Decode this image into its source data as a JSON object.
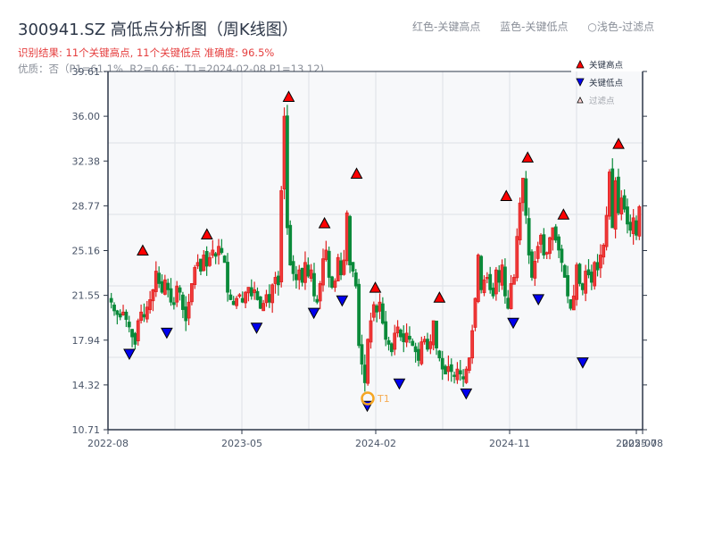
{
  "header": {
    "title": "300941.SZ 高低点分析图（周K线图）",
    "result_line": "识别结果: 11个关键高点, 11个关键低点   准确度: 96.5%",
    "quality_line": "优质：否（P1=61.1%, R2=0.66；T1=2024-02-08 P1=13.12)"
  },
  "top_legend": {
    "red": "红色-关键高点",
    "blue": "蓝色-关键低点",
    "light": "○浅色-过滤点"
  },
  "colors": {
    "up": "#e02020",
    "down": "#0a8a3a",
    "high_marker": "#ff0000",
    "low_marker": "#0000ee",
    "t1_ring": "#f5a623",
    "axis": "#2d3748",
    "grid": "#e2e5ea",
    "plot_bg": "#f7f8fa"
  },
  "chart_data": {
    "type": "candlestick",
    "title": "300941.SZ 高低点分析图（周K线图）",
    "xlabel": "",
    "ylabel": "",
    "ylim": [
      10.71,
      39.61
    ],
    "yticks": [
      "39.61",
      "36.00",
      "32.38",
      "28.77",
      "25.16",
      "21.55",
      "17.94",
      "14.32",
      "10.71"
    ],
    "xticks": [
      "2022-08",
      "2023-05",
      "2024-02",
      "2024-11",
      "2025-07",
      "2025-08"
    ],
    "grid": true,
    "legend": {
      "position": "upper right",
      "entries": [
        "关键高点",
        "关键低点",
        "过滤点"
      ]
    },
    "key_highs": [
      {
        "x_frac": 0.065,
        "value": 24.8
      },
      {
        "x_frac": 0.185,
        "value": 26.1
      },
      {
        "x_frac": 0.338,
        "value": 37.2
      },
      {
        "x_frac": 0.405,
        "value": 27.0
      },
      {
        "x_frac": 0.465,
        "value": 31.0
      },
      {
        "x_frac": 0.5,
        "value": 21.8
      },
      {
        "x_frac": 0.62,
        "value": 21.0
      },
      {
        "x_frac": 0.745,
        "value": 29.2
      },
      {
        "x_frac": 0.785,
        "value": 32.3
      },
      {
        "x_frac": 0.852,
        "value": 27.7
      },
      {
        "x_frac": 0.955,
        "value": 33.4
      }
    ],
    "key_lows": [
      {
        "x_frac": 0.04,
        "value": 17.2
      },
      {
        "x_frac": 0.11,
        "value": 18.9
      },
      {
        "x_frac": 0.278,
        "value": 19.3
      },
      {
        "x_frac": 0.385,
        "value": 20.5
      },
      {
        "x_frac": 0.438,
        "value": 21.5
      },
      {
        "x_frac": 0.485,
        "value": 13.0
      },
      {
        "x_frac": 0.545,
        "value": 14.8
      },
      {
        "x_frac": 0.67,
        "value": 14.0
      },
      {
        "x_frac": 0.758,
        "value": 19.7
      },
      {
        "x_frac": 0.805,
        "value": 21.6
      },
      {
        "x_frac": 0.888,
        "value": 16.5
      }
    ],
    "t1": {
      "label": "T1",
      "date": "2024-02-08",
      "value": 13.12
    },
    "candles_note": "Weekly OHLC series from 2022-08 to 2025-08 (approx. 156 weeks), values estimated from the figure",
    "closes": [
      21.0,
      20.3,
      20.0,
      19.8,
      20.2,
      19.6,
      19.0,
      18.2,
      17.6,
      19.5,
      20.2,
      19.8,
      20.6,
      21.2,
      22.0,
      23.5,
      22.5,
      21.8,
      22.8,
      22.0,
      21.0,
      20.8,
      22.3,
      21.8,
      20.4,
      19.5,
      21.0,
      22.5,
      23.8,
      24.2,
      23.5,
      24.8,
      23.9,
      24.6,
      25.2,
      24.7,
      25.5,
      25.0,
      24.2,
      21.8,
      21.2,
      20.8,
      21.3,
      21.6,
      21.0,
      21.8,
      22.2,
      21.5,
      22.0,
      21.2,
      20.5,
      20.9,
      21.6,
      21.0,
      22.4,
      23.0,
      22.4,
      30.0,
      36.0,
      27.0,
      24.0,
      23.3,
      22.8,
      23.6,
      22.6,
      24.2,
      23.1,
      23.6,
      21.5,
      21.0,
      22.5,
      24.5,
      25.2,
      23.0,
      22.2,
      22.7,
      24.6,
      23.2,
      24.4,
      28.2,
      24.0,
      23.5,
      22.3,
      17.5,
      16.0,
      14.5,
      18.0,
      19.5,
      20.8,
      20.2,
      21.0,
      19.3,
      18.0,
      17.6,
      17.0,
      18.5,
      19.0,
      18.2,
      17.8,
      18.5,
      18.0,
      17.5,
      17.0,
      16.3,
      17.8,
      18.0,
      17.2,
      17.8,
      19.5,
      17.3,
      16.5,
      15.6,
      15.2,
      15.8,
      15.4,
      15.0,
      15.6,
      15.2,
      14.8,
      15.6,
      16.5,
      18.7,
      21.3,
      24.8,
      22.0,
      22.8,
      23.0,
      22.0,
      21.5,
      23.6,
      22.6,
      24.0,
      21.5,
      20.5,
      22.5,
      23.0,
      26.3,
      29.0,
      31.0,
      28.0,
      24.8,
      23.0,
      24.3,
      25.5,
      26.4,
      24.8,
      25.0,
      26.2,
      27.0,
      26.0,
      25.2,
      24.2,
      23.0,
      21.5,
      20.5,
      21.5,
      24.0,
      22.5,
      22.0,
      23.5,
      23.2,
      22.6,
      24.2,
      23.6,
      24.8,
      25.6,
      28.0,
      31.5,
      27.0,
      30.8,
      28.2,
      29.4,
      28.5,
      27.3,
      26.8,
      27.8,
      26.4,
      28.7
    ]
  }
}
